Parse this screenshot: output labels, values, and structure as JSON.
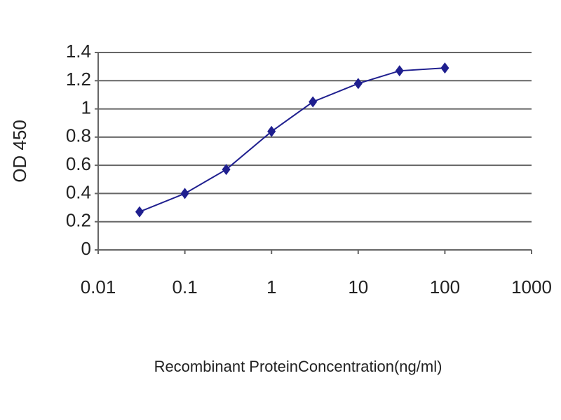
{
  "chart_data": {
    "type": "line",
    "xlabel": "Recombinant ProteinConcentration(ng/ml)",
    "ylabel": "OD 450",
    "x": [
      0.03,
      0.1,
      0.3,
      1,
      3,
      10,
      30,
      100
    ],
    "series": [
      {
        "name": "OD 450",
        "color": "#1f1f8f",
        "values": [
          0.27,
          0.4,
          0.57,
          0.84,
          1.05,
          1.18,
          1.27,
          1.29
        ]
      }
    ],
    "xscale": "log",
    "xlim": [
      0.01,
      1000
    ],
    "xticks": [
      0.01,
      0.1,
      1,
      10,
      100,
      1000
    ],
    "ylim": [
      0,
      1.4
    ],
    "yticks": [
      0,
      0.2,
      0.4,
      0.6,
      0.8,
      1,
      1.2,
      1.4
    ],
    "grid": true
  }
}
